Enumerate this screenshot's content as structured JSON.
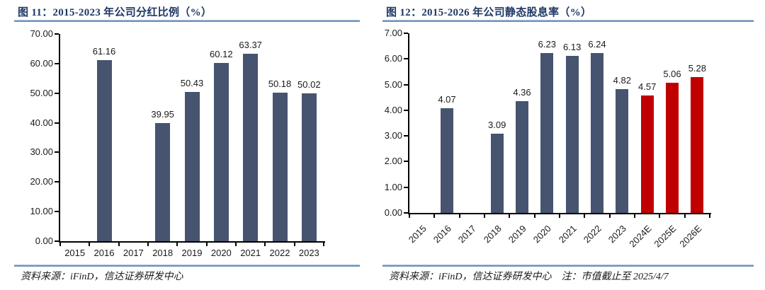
{
  "accent_colors": {
    "bar_navy": "#47546F",
    "bar_red": "#C00000",
    "rule_blue": "#6C93BE",
    "title_navy": "#1F3864"
  },
  "figures": [
    {
      "title": "图 11：2015-2023 年公司分红比例（%）",
      "source": "资料来源：iFinD，信达证券研发中心",
      "chart_data": {
        "type": "bar",
        "title": "2015-2023 年公司分红比例（%）",
        "categories": [
          "2015",
          "2016",
          "2017",
          "2018",
          "2019",
          "2020",
          "2021",
          "2022",
          "2023"
        ],
        "values": [
          null,
          61.16,
          null,
          39.95,
          50.43,
          60.12,
          63.37,
          50.18,
          50.02
        ],
        "data_labels": [
          "",
          "61.16",
          "",
          "39.95",
          "50.43",
          "60.12",
          "63.37",
          "50.18",
          "50.02"
        ],
        "xlabel": "",
        "ylabel": "",
        "ylim": [
          0,
          70
        ],
        "ytick_step": 10,
        "ytick_format_decimals": 2,
        "grid": false,
        "legend": "none",
        "bar_color": "#47546F",
        "xlabel_rotation": 0
      }
    },
    {
      "title": "图 12：2015-2026 年公司静态股息率（%）",
      "source": "资料来源：iFinD，信达证券研发中心",
      "note": "注：市值截止至 2025/4/7",
      "chart_data": {
        "type": "bar",
        "title": "2015-2026 年公司静态股息率（%）",
        "categories": [
          "2015",
          "2016",
          "2017",
          "2018",
          "2019",
          "2020",
          "2021",
          "2022",
          "2023",
          "2024E",
          "2025E",
          "2026E"
        ],
        "values": [
          null,
          4.07,
          null,
          3.09,
          4.36,
          6.23,
          6.13,
          6.24,
          4.82,
          4.57,
          5.06,
          5.28
        ],
        "data_labels": [
          "",
          "4.07",
          "",
          "3.09",
          "4.36",
          "6.23",
          "6.13",
          "6.24",
          "4.82",
          "4.57",
          "5.06",
          "5.28"
        ],
        "xlabel": "",
        "ylabel": "",
        "ylim": [
          0,
          7
        ],
        "ytick_step": 1,
        "ytick_format_decimals": 2,
        "grid": false,
        "legend": "none",
        "bar_color": "#47546F",
        "highlight_color": "#C00000",
        "highlight_start_index": 9,
        "xlabel_rotation": -45
      }
    }
  ]
}
